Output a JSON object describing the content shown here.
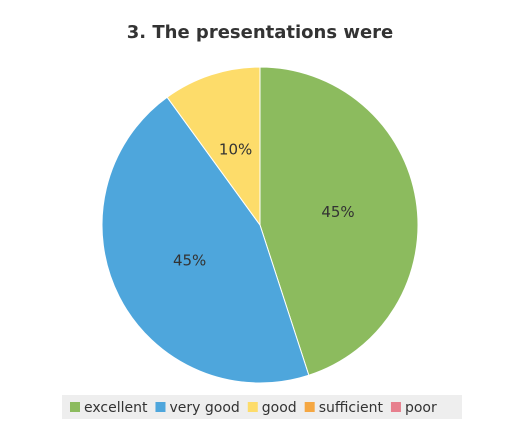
{
  "chart_data": {
    "type": "pie",
    "title": "3. The presentations were",
    "categories": [
      "excellent",
      "very good",
      "good",
      "sufficient",
      "poor"
    ],
    "values": [
      45,
      45,
      10,
      0,
      0
    ],
    "value_labels": [
      "45%",
      "45%",
      "10%",
      null,
      null
    ],
    "colors": [
      "#8cbb5e",
      "#4ea6dc",
      "#fddc6a",
      "#f5a742",
      "#e77f8d"
    ],
    "legend": "bottom"
  }
}
